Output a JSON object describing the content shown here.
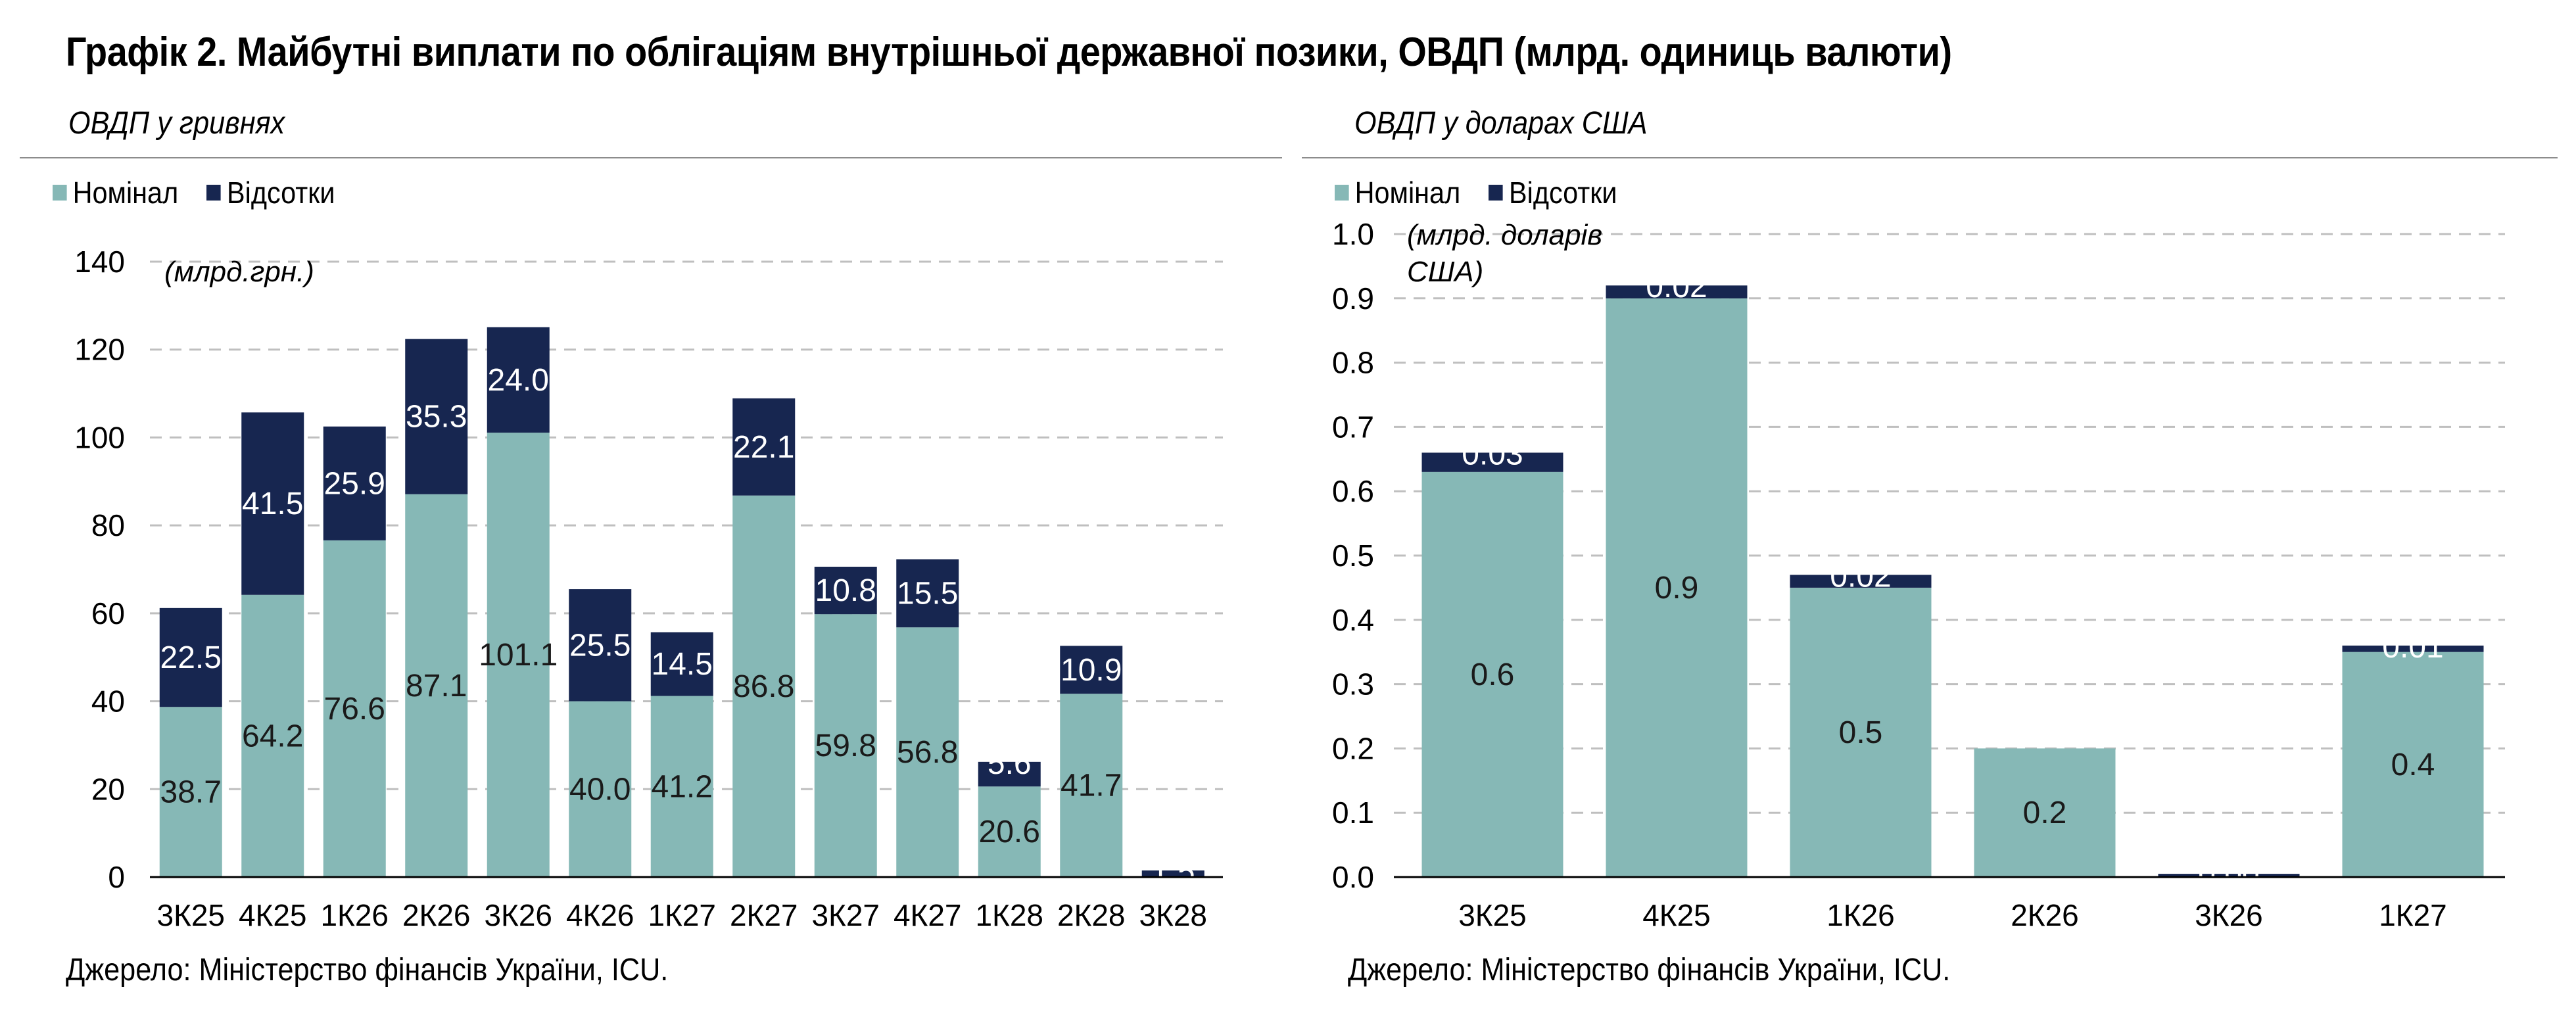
{
  "title": "Графік 2. Майбутні виплати по облігаціям внутрішньої державної позики, ОВДП (млрд. одиниць валюти)",
  "source": "Джерело: Міністерство фінансів України, ICU.",
  "colors": {
    "nominal": "#86b8b6",
    "interest": "#172650",
    "grid": "#bfbfbf"
  },
  "chart_data": [
    {
      "type": "bar",
      "stacked": true,
      "subtitle": "ОВДП у гривнях",
      "unit_note": "(млрд.грн.)",
      "legend": [
        "Номінал",
        "Відсотки"
      ],
      "categories": [
        "3К25",
        "4К25",
        "1К26",
        "2К26",
        "3К26",
        "4К26",
        "1К27",
        "2К27",
        "3К27",
        "4К27",
        "1К28",
        "2К28",
        "3К28"
      ],
      "series": [
        {
          "name": "Номінал",
          "values": [
            38.7,
            64.2,
            76.6,
            87.1,
            101.1,
            40.0,
            41.2,
            86.8,
            59.8,
            56.8,
            20.6,
            41.7,
            0.0
          ],
          "labels": [
            "38.7",
            "64.2",
            "76.6",
            "87.1",
            "101.1",
            "40.0",
            "41.2",
            "86.8",
            "59.8",
            "56.8",
            "20.6",
            "41.7",
            ""
          ]
        },
        {
          "name": "Відсотки",
          "values": [
            22.5,
            41.5,
            25.9,
            35.3,
            24.0,
            25.5,
            14.5,
            22.1,
            10.8,
            15.5,
            5.6,
            10.9,
            1.5
          ],
          "labels": [
            "22.5",
            "41.5",
            "25.9",
            "35.3",
            "24.0",
            "25.5",
            "14.5",
            "22.1",
            "10.8",
            "15.5",
            "5.6",
            "10.9",
            "1.5"
          ]
        }
      ],
      "ylim": [
        0,
        140
      ],
      "yticks": [
        "0",
        "20",
        "40",
        "60",
        "80",
        "100",
        "120",
        "140"
      ],
      "grid": true,
      "legend_position": "top-left"
    },
    {
      "type": "bar",
      "stacked": true,
      "subtitle": "ОВДП у доларах США",
      "unit_note": [
        "(млрд. доларів",
        "США)"
      ],
      "legend": [
        "Номінал",
        "Відсотки"
      ],
      "categories": [
        "3К25",
        "4К25",
        "1К26",
        "2К26",
        "3К26",
        "1К27"
      ],
      "series": [
        {
          "name": "Номінал",
          "values": [
            0.63,
            0.9,
            0.45,
            0.2,
            0.0,
            0.35
          ],
          "labels": [
            "0.6",
            "0.9",
            "0.5",
            "0.2",
            "",
            "0.4"
          ]
        },
        {
          "name": "Відсотки",
          "values": [
            0.03,
            0.02,
            0.02,
            0.0,
            0.005,
            0.01
          ],
          "labels": [
            "0.03",
            "0.02",
            "0.02",
            "",
            "0.00",
            "0.01"
          ]
        }
      ],
      "ylim": [
        0,
        1.0
      ],
      "yticks": [
        "0.0",
        "0.1",
        "0.2",
        "0.3",
        "0.4",
        "0.5",
        "0.6",
        "0.7",
        "0.8",
        "0.9",
        "1.0"
      ],
      "grid": true,
      "legend_position": "top-left"
    }
  ]
}
